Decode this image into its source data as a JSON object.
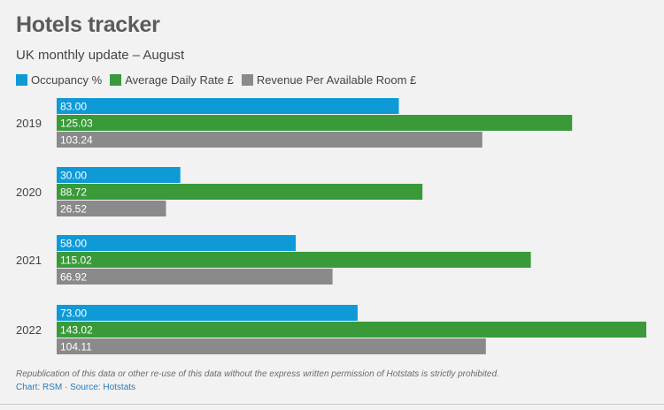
{
  "header": {
    "title": "Hotels tracker",
    "subtitle": "UK monthly update – August"
  },
  "footer": {
    "note": "Republication of this data or other re-use of this data without the express written permission of Hotstats is strictly prohibited.",
    "credit": "Chart: RSM · Source: Hotstats"
  },
  "colors": {
    "occupancy": "#0e9ad7",
    "adr": "#3a9a3a",
    "revpar": "#8a8a8a"
  },
  "chart_data": {
    "type": "bar",
    "orientation": "horizontal",
    "categories": [
      "2019",
      "2020",
      "2021",
      "2022"
    ],
    "series": [
      {
        "name": "Occupancy %",
        "color": "#0e9ad7",
        "values": [
          83.0,
          30.0,
          58.0,
          73.0
        ],
        "labels": [
          "83.00",
          "30.00",
          "58.00",
          "73.00"
        ]
      },
      {
        "name": "Average Daily Rate £",
        "color": "#3a9a3a",
        "values": [
          125.03,
          88.72,
          115.02,
          143.02
        ],
        "labels": [
          "125.03",
          "88.72",
          "115.02",
          "143.02"
        ]
      },
      {
        "name": "Revenue Per Available Room £",
        "color": "#8a8a8a",
        "values": [
          103.24,
          26.52,
          66.92,
          104.11
        ],
        "labels": [
          "103.24",
          "26.52",
          "66.92",
          "104.11"
        ]
      }
    ],
    "xlim": [
      0,
      143.02
    ],
    "legend_position": "top-left",
    "grid": false
  }
}
